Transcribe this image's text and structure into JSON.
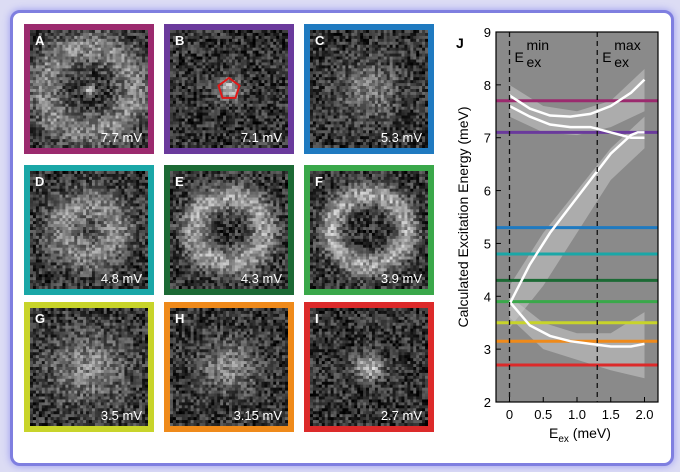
{
  "panels": [
    {
      "label": "A",
      "value": "7.7 mV",
      "color": "#9b2a6e",
      "blob": {
        "type": "ring",
        "r": 0.38,
        "w": 0.18,
        "i": 0.55,
        "dot": 0.85
      }
    },
    {
      "label": "B",
      "value": "7.1 mV",
      "color": "#6a3a9c",
      "blob": {
        "type": "spot",
        "r": 0.12,
        "i": 1.0,
        "pent": true
      }
    },
    {
      "label": "C",
      "value": "5.3 mV",
      "color": "#1f7ac0",
      "blob": {
        "type": "spot",
        "r": 0.3,
        "i": 0.5
      }
    },
    {
      "label": "D",
      "value": "4.8 mV",
      "color": "#1aa7a7",
      "blob": {
        "type": "ring",
        "r": 0.22,
        "w": 0.2,
        "i": 0.55
      }
    },
    {
      "label": "E",
      "value": "4.3 mV",
      "color": "#1c6a35",
      "blob": {
        "type": "ring",
        "r": 0.3,
        "w": 0.14,
        "i": 0.7
      }
    },
    {
      "label": "F",
      "value": "3.9 mV",
      "color": "#3aa84a",
      "blob": {
        "type": "ring",
        "r": 0.32,
        "w": 0.12,
        "i": 0.75
      }
    },
    {
      "label": "G",
      "value": "3.5 mV",
      "color": "#c8d42a",
      "blob": {
        "type": "spot",
        "r": 0.38,
        "i": 0.55
      }
    },
    {
      "label": "H",
      "value": "3.15 mV",
      "color": "#ef8a1a",
      "blob": {
        "type": "spot",
        "r": 0.28,
        "i": 0.55
      }
    },
    {
      "label": "I",
      "value": "2.7 mV",
      "color": "#dc2a2a",
      "blob": {
        "type": "spot",
        "r": 0.14,
        "i": 0.9
      }
    }
  ],
  "chart_data": {
    "type": "line",
    "panel_label": "J",
    "xlabel_main": "E",
    "xlabel_sub": "ex",
    "xlabel_unit": " (meV)",
    "ylabel": "Calculated Excitation Energy (meV)",
    "xlim": [
      -0.2,
      2.2
    ],
    "ylim": [
      2,
      9
    ],
    "xticks": [
      0,
      0.5,
      1.0,
      1.5,
      2.0
    ],
    "xtick_labels": [
      "0",
      "0.5",
      "1.0",
      "1.5",
      "2.0"
    ],
    "yticks": [
      2,
      3,
      4,
      5,
      6,
      7,
      8,
      9
    ],
    "ytick_labels": [
      "2",
      "3",
      "4",
      "5",
      "6",
      "7",
      "8",
      "9"
    ],
    "emin_label": {
      "main": "E",
      "sub": "ex",
      "sup": "min",
      "x": 0
    },
    "emax_label": {
      "main": "E",
      "sub": "ex",
      "sup": "max",
      "x": 1.3
    },
    "hlines": [
      {
        "y": 7.7,
        "color": "#9b2a6e"
      },
      {
        "y": 7.1,
        "color": "#6a3a9c"
      },
      {
        "y": 5.3,
        "color": "#1f7ac0"
      },
      {
        "y": 4.8,
        "color": "#1aa7a7"
      },
      {
        "y": 4.3,
        "color": "#1c6a35"
      },
      {
        "y": 3.9,
        "color": "#3aa84a"
      },
      {
        "y": 3.5,
        "color": "#c8d42a"
      },
      {
        "y": 3.15,
        "color": "#ef8a1a"
      },
      {
        "y": 2.7,
        "color": "#dc2a2a"
      }
    ],
    "series": [
      {
        "x": [
          0,
          0.3,
          0.6,
          0.9,
          1.2,
          1.5,
          1.8,
          2.0
        ],
        "y": [
          7.8,
          7.55,
          7.42,
          7.4,
          7.45,
          7.6,
          7.85,
          8.1
        ]
      },
      {
        "x": [
          0,
          0.3,
          0.6,
          0.9,
          1.2,
          1.5,
          1.8,
          2.0
        ],
        "y": [
          7.6,
          7.4,
          7.25,
          7.2,
          7.2,
          7.1,
          7.0,
          7.0
        ]
      },
      {
        "x": [
          0,
          0.3,
          0.6,
          0.9,
          1.2,
          1.5,
          1.8,
          1.9,
          2.0
        ],
        "y": [
          3.85,
          4.6,
          5.2,
          5.7,
          6.2,
          6.7,
          7.05,
          7.1,
          7.1
        ]
      },
      {
        "x": [
          0,
          0.3,
          0.6,
          0.9,
          1.2,
          1.5,
          1.8,
          2.0
        ],
        "y": [
          3.9,
          3.45,
          3.25,
          3.15,
          3.1,
          3.05,
          3.05,
          3.1
        ]
      }
    ],
    "bands": [
      {
        "upper": [
          [
            0,
            8.0
          ],
          [
            0.5,
            7.6
          ],
          [
            1.0,
            7.5
          ],
          [
            1.5,
            7.7
          ],
          [
            2.0,
            8.3
          ]
        ],
        "lower": [
          [
            0,
            7.4
          ],
          [
            0.5,
            7.1
          ],
          [
            1.0,
            7.05
          ],
          [
            1.5,
            7.2
          ],
          [
            2.0,
            7.5
          ]
        ]
      },
      {
        "upper": [
          [
            0,
            4.2
          ],
          [
            0.5,
            5.2
          ],
          [
            1.0,
            6.0
          ],
          [
            1.5,
            6.8
          ],
          [
            2.0,
            7.4
          ]
        ],
        "lower": [
          [
            0,
            3.4
          ],
          [
            0.5,
            4.2
          ],
          [
            1.0,
            5.2
          ],
          [
            1.5,
            6.2
          ],
          [
            2.0,
            6.8
          ]
        ]
      },
      {
        "upper": [
          [
            0,
            4.0
          ],
          [
            0.5,
            3.5
          ],
          [
            1.0,
            3.3
          ],
          [
            1.5,
            3.3
          ],
          [
            2.0,
            3.7
          ]
        ],
        "lower": [
          [
            0,
            3.6
          ],
          [
            0.5,
            3.0
          ],
          [
            1.0,
            2.8
          ],
          [
            1.5,
            2.6
          ],
          [
            2.0,
            2.45
          ]
        ]
      }
    ],
    "vlines": [
      0,
      1.3
    ],
    "grid": false
  }
}
